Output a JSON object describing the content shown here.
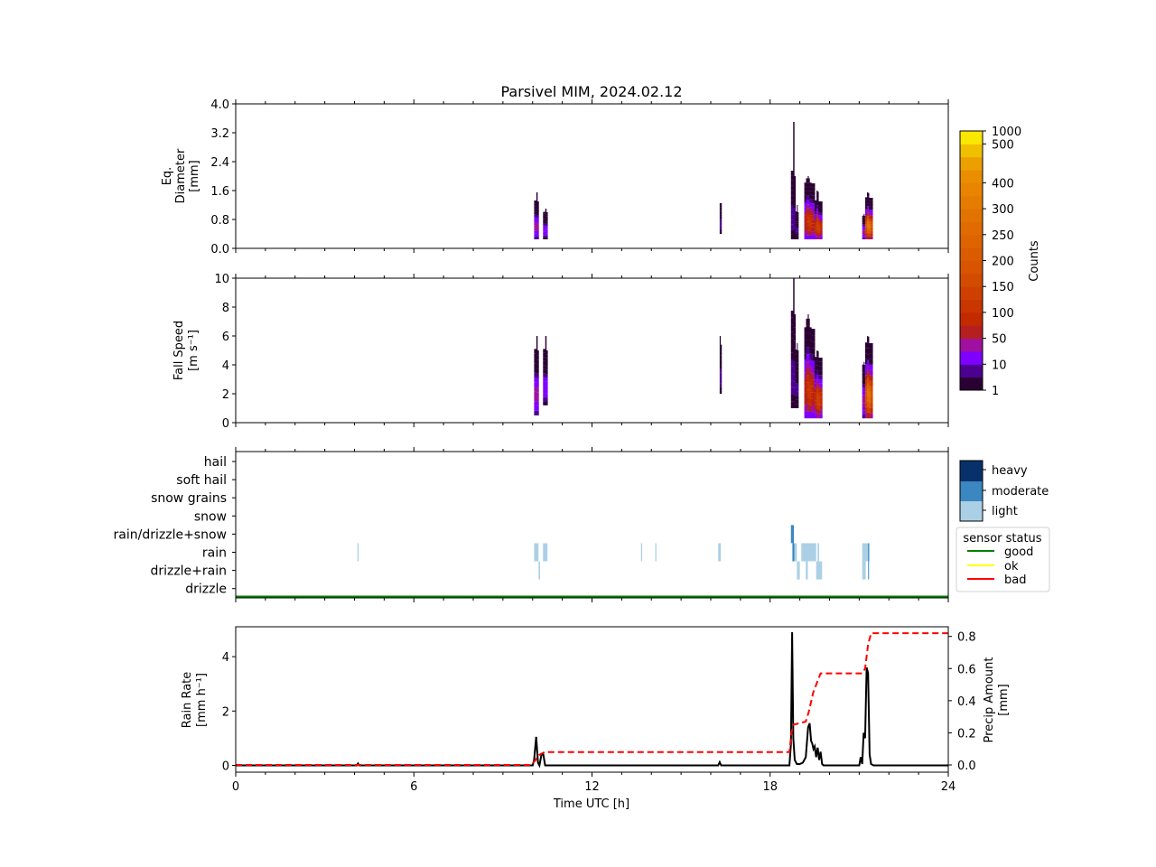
{
  "chart_data": [
    {
      "type": "heatmap",
      "panel": "diameter",
      "title": "Parsivel MIM, 2024.02.12",
      "ylabel_lines": [
        "Eq.",
        "Diameter",
        "[mm]"
      ],
      "ylim": [
        0.0,
        4.0
      ],
      "yticks": [
        "0.0",
        "0.8",
        "1.6",
        "2.4",
        "3.2",
        "4.0"
      ],
      "ytick_values": [
        0.0,
        0.8,
        1.6,
        2.4,
        3.2,
        4.0
      ],
      "xlim": [
        0,
        24
      ],
      "events": [
        {
          "t0": 10.05,
          "t1": 10.2,
          "ymin": 0.25,
          "ymax": 1.3,
          "peak": 1.55,
          "core": 60
        },
        {
          "t0": 10.35,
          "t1": 10.5,
          "ymin": 0.25,
          "ymax": 1.0,
          "peak": 1.1,
          "core": 30
        },
        {
          "t0": 16.3,
          "t1": 16.36,
          "ymin": 0.4,
          "ymax": 1.25,
          "peak": 1.25,
          "core": 10
        },
        {
          "t0": 18.7,
          "t1": 18.85,
          "ymin": 0.25,
          "ymax": 2.0,
          "peak": 3.5,
          "core": 15
        },
        {
          "t0": 18.85,
          "t1": 18.95,
          "ymin": 0.25,
          "ymax": 1.0,
          "peak": 1.2,
          "core": 10
        },
        {
          "t0": 19.15,
          "t1": 19.5,
          "ymin": 0.25,
          "ymax": 1.8,
          "peak": 2.0,
          "core": 120
        },
        {
          "t0": 19.5,
          "t1": 19.75,
          "ymin": 0.25,
          "ymax": 1.3,
          "peak": 1.6,
          "core": 150
        },
        {
          "t0": 21.1,
          "t1": 21.2,
          "ymin": 0.25,
          "ymax": 0.9,
          "peak": 0.95,
          "core": 60
        },
        {
          "t0": 21.2,
          "t1": 21.45,
          "ymin": 0.25,
          "ymax": 1.4,
          "peak": 1.55,
          "core": 300
        }
      ]
    },
    {
      "type": "heatmap",
      "panel": "fall_speed",
      "ylabel_lines": [
        "Fall Speed",
        "[m s⁻¹]"
      ],
      "ylim": [
        0,
        10
      ],
      "yticks": [
        "0",
        "2",
        "4",
        "6",
        "8",
        "10"
      ],
      "ytick_values": [
        0,
        2,
        4,
        6,
        8,
        10
      ],
      "xlim": [
        0,
        24
      ],
      "events": [
        {
          "t0": 10.05,
          "t1": 10.2,
          "ymin": 0.5,
          "ymax": 5.0,
          "peak": 6.0,
          "core": 60
        },
        {
          "t0": 10.35,
          "t1": 10.5,
          "ymin": 1.2,
          "ymax": 5.0,
          "peak": 6.0,
          "core": 30
        },
        {
          "t0": 16.3,
          "t1": 16.36,
          "ymin": 2.0,
          "ymax": 5.0,
          "peak": 6.0,
          "core": 10
        },
        {
          "t0": 18.7,
          "t1": 18.85,
          "ymin": 1.0,
          "ymax": 7.5,
          "peak": 10.0,
          "core": 15
        },
        {
          "t0": 18.85,
          "t1": 18.95,
          "ymin": 1.0,
          "ymax": 5.0,
          "peak": 5.5,
          "core": 10
        },
        {
          "t0": 19.15,
          "t1": 19.5,
          "ymin": 0.3,
          "ymax": 6.5,
          "peak": 7.5,
          "core": 120
        },
        {
          "t0": 19.5,
          "t1": 19.75,
          "ymin": 0.3,
          "ymax": 4.5,
          "peak": 5.0,
          "core": 150
        },
        {
          "t0": 21.1,
          "t1": 21.2,
          "ymin": 0.3,
          "ymax": 4.0,
          "peak": 4.2,
          "core": 60
        },
        {
          "t0": 21.2,
          "t1": 21.45,
          "ymin": 0.3,
          "ymax": 5.5,
          "peak": 6.0,
          "core": 300
        }
      ]
    },
    {
      "type": "heatmap",
      "panel": "precip_type",
      "categories": [
        "hail",
        "soft hail",
        "snow grains",
        "snow",
        "rain/drizzle+snow",
        "rain",
        "drizzle+rain",
        "drizzle"
      ],
      "xlim": [
        0,
        24
      ],
      "intensity_legend": {
        "labels": [
          "heavy",
          "moderate",
          "light"
        ],
        "colors": [
          "#08306b",
          "#3a87c1",
          "#abd0e6"
        ]
      },
      "status_legend": {
        "title": "sensor status",
        "labels": [
          "good",
          "ok",
          "bad"
        ],
        "colors": [
          "#008000",
          "#ffff00",
          "#ff0000"
        ]
      },
      "sensor_status": "good",
      "blocks": [
        {
          "t0": 4.1,
          "t1": 4.14,
          "cat": "rain",
          "level": "light"
        },
        {
          "t0": 10.05,
          "t1": 10.2,
          "cat": "rain",
          "level": "light"
        },
        {
          "t0": 10.2,
          "t1": 10.25,
          "cat": "drizzle+rain",
          "level": "light"
        },
        {
          "t0": 10.35,
          "t1": 10.5,
          "cat": "rain",
          "level": "light"
        },
        {
          "t0": 13.65,
          "t1": 13.69,
          "cat": "rain",
          "level": "light"
        },
        {
          "t0": 14.13,
          "t1": 14.17,
          "cat": "rain",
          "level": "light"
        },
        {
          "t0": 16.25,
          "t1": 16.34,
          "cat": "rain",
          "level": "light"
        },
        {
          "t0": 18.7,
          "t1": 18.8,
          "cat": "rain/drizzle+snow",
          "level": "moderate"
        },
        {
          "t0": 18.75,
          "t1": 18.82,
          "cat": "rain",
          "level": "moderate"
        },
        {
          "t0": 18.82,
          "t1": 18.9,
          "cat": "rain",
          "level": "light"
        },
        {
          "t0": 18.9,
          "t1": 19.0,
          "cat": "drizzle+rain",
          "level": "light"
        },
        {
          "t0": 19.05,
          "t1": 19.55,
          "cat": "rain",
          "level": "light"
        },
        {
          "t0": 19.6,
          "t1": 19.65,
          "cat": "rain",
          "level": "light"
        },
        {
          "t0": 19.2,
          "t1": 19.27,
          "cat": "drizzle+rain",
          "level": "light"
        },
        {
          "t0": 19.55,
          "t1": 19.75,
          "cat": "drizzle+rain",
          "level": "light"
        },
        {
          "t0": 21.1,
          "t1": 21.35,
          "cat": "rain",
          "level": "light"
        },
        {
          "t0": 21.1,
          "t1": 21.22,
          "cat": "drizzle+rain",
          "level": "light"
        },
        {
          "t0": 21.3,
          "t1": 21.33,
          "cat": "drizzle+rain",
          "level": "moderate"
        },
        {
          "t0": 21.3,
          "t1": 21.33,
          "cat": "rain",
          "level": "moderate"
        }
      ]
    },
    {
      "type": "line",
      "panel": "rain_rate",
      "xlabel": "Time UTC [h]",
      "xticks": [
        "0",
        "6",
        "12",
        "18",
        "24"
      ],
      "xtick_values": [
        0,
        6,
        12,
        18,
        24
      ],
      "xlim": [
        0,
        24
      ],
      "ylabel_lines": [
        "Rain Rate",
        "[mm h⁻¹]"
      ],
      "ylim": [
        -0.25,
        5.1
      ],
      "yticks": [
        "0",
        "2",
        "4"
      ],
      "ytick_values": [
        0,
        2,
        4
      ],
      "y2label_lines": [
        "Precip Amount",
        "[mm]"
      ],
      "y2lim": [
        -0.045,
        0.86
      ],
      "y2ticks": [
        "0.0",
        "0.2",
        "0.4",
        "0.6",
        "0.8"
      ],
      "y2tick_values": [
        0.0,
        0.2,
        0.4,
        0.6,
        0.8
      ],
      "series": [
        {
          "name": "rain rate",
          "color": "#000000",
          "style": "solid",
          "x": [
            0,
            4.08,
            4.12,
            4.16,
            10.0,
            10.05,
            10.12,
            10.18,
            10.23,
            10.3,
            10.36,
            10.42,
            10.48,
            16.25,
            16.3,
            16.35,
            18.65,
            18.7,
            18.74,
            18.78,
            18.83,
            18.9,
            19.0,
            19.1,
            19.2,
            19.28,
            19.33,
            19.38,
            19.42,
            19.46,
            19.5,
            19.55,
            19.6,
            19.65,
            19.7,
            19.75,
            19.8,
            21.0,
            21.05,
            21.1,
            21.15,
            21.2,
            21.25,
            21.3,
            21.35,
            21.4,
            21.48,
            24
          ],
          "values": [
            0,
            0,
            0.07,
            0,
            0,
            0.2,
            1.05,
            0.1,
            0,
            0.4,
            0.4,
            0,
            0,
            0,
            0.12,
            0,
            0,
            0.8,
            4.9,
            1.0,
            0.2,
            0.05,
            0.05,
            0.1,
            0.3,
            1.4,
            1.55,
            0.9,
            0.8,
            0.6,
            0.7,
            0.3,
            0.65,
            0.2,
            0.5,
            0.05,
            0,
            0,
            0.3,
            0.05,
            1.2,
            1.0,
            3.6,
            3.4,
            0.4,
            0.05,
            0,
            0
          ]
        },
        {
          "name": "precip amount",
          "axis": "right",
          "color": "#ff0000",
          "style": "dashed",
          "x": [
            0,
            9.95,
            10.1,
            10.2,
            10.3,
            10.4,
            18.65,
            18.72,
            18.78,
            19.2,
            19.3,
            19.45,
            19.7,
            20.0,
            21.1,
            21.2,
            21.3,
            21.4,
            24
          ],
          "values": [
            0,
            0,
            0.03,
            0.06,
            0.07,
            0.08,
            0.08,
            0.2,
            0.25,
            0.27,
            0.33,
            0.45,
            0.57,
            0.57,
            0.57,
            0.6,
            0.75,
            0.82,
            0.82
          ]
        }
      ]
    }
  ],
  "colorbar": {
    "label": "Counts",
    "ticks": [
      "1",
      "10",
      "50",
      "100",
      "150",
      "200",
      "250",
      "300",
      "400",
      "500",
      "1000"
    ],
    "colors": [
      "#2a0033",
      "#4b0090",
      "#7f00ff",
      "#a010a0",
      "#b51f1f",
      "#c42a00",
      "#c93600",
      "#cf4000",
      "#d34b00",
      "#d85400",
      "#db5c00",
      "#de6400",
      "#e16b00",
      "#e37300",
      "#e57c00",
      "#e88400",
      "#ea8e00",
      "#eca000",
      "#f0c000",
      "#fbe800"
    ]
  }
}
